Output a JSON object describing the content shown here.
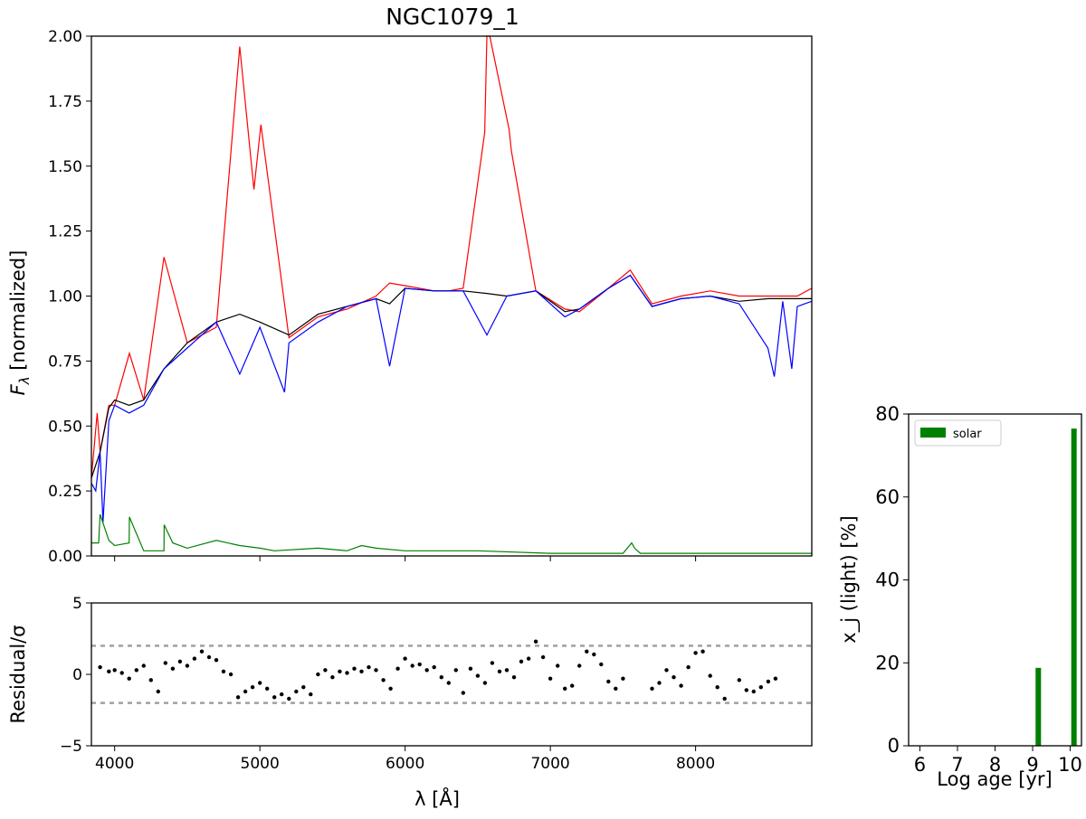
{
  "chart_data": [
    {
      "type": "line",
      "title": "NGC1079_1",
      "xlabel": "λ [Å]",
      "ylabel": "F_λ [normalized]",
      "ylabel_main": "F",
      "ylabel_sub": "λ",
      "ylabel_rest": " [normalized]",
      "xlim": [
        3840,
        8800
      ],
      "ylim": [
        0,
        2.0
      ],
      "xticks": [
        4000,
        5000,
        6000,
        7000,
        8000
      ],
      "yticks": [
        "0.00",
        "0.25",
        "0.50",
        "0.75",
        "1.00",
        "1.25",
        "1.50",
        "1.75",
        "2.00"
      ],
      "grid": false,
      "series": [
        {
          "key": "observed",
          "color": "#ff0000",
          "x": [
            3840,
            3880,
            3900,
            3960,
            4000,
            4102,
            4200,
            4340,
            4500,
            4700,
            4861,
            4959,
            5007,
            5200,
            5400,
            5600,
            5800,
            5893,
            6000,
            6200,
            6300,
            6400,
            6548,
            6563,
            6583,
            6716,
            6731,
            6900,
            7100,
            7200,
            7400,
            7550,
            7700,
            7900,
            8100,
            8300,
            8500,
            8700,
            8800
          ],
          "y": [
            0.3,
            0.55,
            0.4,
            0.58,
            0.58,
            0.78,
            0.6,
            1.15,
            0.82,
            0.88,
            1.96,
            1.41,
            1.66,
            0.84,
            0.92,
            0.95,
            1.0,
            1.05,
            1.04,
            1.02,
            1.02,
            1.03,
            1.63,
            2.0,
            2.0,
            1.64,
            1.56,
            1.02,
            0.95,
            0.94,
            1.03,
            1.1,
            0.97,
            1.0,
            1.02,
            1.0,
            1.0,
            1.0,
            1.03
          ]
        },
        {
          "key": "synthetic",
          "color": "#000000",
          "x": [
            3840,
            3900,
            3960,
            4000,
            4100,
            4200,
            4340,
            4500,
            4700,
            4861,
            5000,
            5200,
            5400,
            5600,
            5800,
            5893,
            6000,
            6200,
            6400,
            6563,
            6700,
            6900,
            7100,
            7200,
            7400,
            7550,
            7700,
            7900,
            8100,
            8300,
            8500,
            8700,
            8800
          ],
          "y": [
            0.3,
            0.4,
            0.57,
            0.6,
            0.58,
            0.6,
            0.72,
            0.82,
            0.9,
            0.93,
            0.9,
            0.85,
            0.93,
            0.96,
            0.99,
            0.97,
            1.03,
            1.02,
            1.02,
            1.01,
            1.0,
            1.02,
            0.94,
            0.95,
            1.03,
            1.08,
            0.96,
            0.99,
            1.0,
            0.98,
            0.99,
            0.99,
            0.99
          ]
        },
        {
          "key": "best-fit",
          "color": "#0000ff",
          "x": [
            3840,
            3870,
            3900,
            3920,
            3960,
            4000,
            4100,
            4200,
            4340,
            4500,
            4700,
            4861,
            5000,
            5170,
            5200,
            5400,
            5600,
            5800,
            5893,
            6000,
            6200,
            6400,
            6563,
            6700,
            6900,
            7100,
            7200,
            7400,
            7550,
            7700,
            7900,
            8100,
            8300,
            8498,
            8542,
            8600,
            8662,
            8700,
            8800
          ],
          "y": [
            0.28,
            0.25,
            0.4,
            0.13,
            0.52,
            0.58,
            0.55,
            0.58,
            0.72,
            0.8,
            0.9,
            0.7,
            0.88,
            0.63,
            0.82,
            0.9,
            0.96,
            0.99,
            0.73,
            1.03,
            1.02,
            1.02,
            0.85,
            1.0,
            1.02,
            0.92,
            0.95,
            1.03,
            1.08,
            0.96,
            0.99,
            1.0,
            0.97,
            0.8,
            0.69,
            0.98,
            0.72,
            0.96,
            0.98
          ]
        },
        {
          "key": "mask",
          "color": "#008000",
          "x": [
            3840,
            3890,
            3900,
            3960,
            4000,
            4100,
            4102,
            4200,
            4340,
            4341,
            4400,
            4500,
            4700,
            4861,
            5000,
            5100,
            5400,
            5600,
            5700,
            5800,
            6000,
            6500,
            7000,
            7500,
            7560,
            7580,
            7620,
            8000,
            8800
          ],
          "y": [
            0.05,
            0.05,
            0.16,
            0.06,
            0.04,
            0.05,
            0.15,
            0.02,
            0.02,
            0.12,
            0.05,
            0.03,
            0.06,
            0.04,
            0.03,
            0.02,
            0.03,
            0.02,
            0.04,
            0.03,
            0.02,
            0.02,
            0.01,
            0.01,
            0.05,
            0.03,
            0.01,
            0.01,
            0.01
          ]
        }
      ]
    },
    {
      "type": "scatter",
      "xlabel": "λ [Å]",
      "ylabel": "Residual/σ",
      "xlim": [
        3840,
        8800
      ],
      "ylim": [
        -5,
        5
      ],
      "xticks": [
        4000,
        5000,
        6000,
        7000,
        8000
      ],
      "xtick_labels": [
        "4000",
        "5000",
        "6000",
        "7000",
        "8000"
      ],
      "yticks": [
        -5,
        0,
        5
      ],
      "ytick_labels": [
        "−5",
        "0",
        "5"
      ],
      "hlines": [
        2,
        -2
      ],
      "hline_color": "#a0a0a0",
      "point_color": "#000000",
      "points_x": [
        3900,
        3960,
        4000,
        4050,
        4100,
        4150,
        4200,
        4250,
        4300,
        4350,
        4400,
        4450,
        4500,
        4550,
        4600,
        4650,
        4700,
        4750,
        4800,
        4850,
        4900,
        4950,
        5000,
        5050,
        5100,
        5150,
        5200,
        5250,
        5300,
        5350,
        5400,
        5450,
        5500,
        5550,
        5600,
        5650,
        5700,
        5750,
        5800,
        5850,
        5900,
        5950,
        6000,
        6050,
        6100,
        6150,
        6200,
        6250,
        6300,
        6350,
        6400,
        6450,
        6500,
        6550,
        6600,
        6650,
        6700,
        6750,
        6800,
        6850,
        6900,
        6950,
        7000,
        7050,
        7100,
        7150,
        7200,
        7250,
        7300,
        7350,
        7400,
        7450,
        7500,
        7700,
        7750,
        7800,
        7850,
        7900,
        7950,
        8000,
        8050,
        8100,
        8150,
        8200,
        8300,
        8350,
        8400,
        8450,
        8500,
        8550
      ],
      "points_y": [
        0.5,
        0.2,
        0.3,
        0.1,
        -0.3,
        0.3,
        0.6,
        -0.4,
        -1.2,
        0.8,
        0.4,
        0.9,
        0.6,
        1.1,
        1.6,
        1.2,
        1.0,
        0.2,
        0.0,
        -1.6,
        -1.2,
        -0.9,
        -0.6,
        -1.0,
        -1.6,
        -1.4,
        -1.7,
        -1.2,
        -0.9,
        -1.4,
        0.0,
        0.3,
        -0.2,
        0.2,
        0.1,
        0.4,
        0.2,
        0.5,
        0.3,
        -0.4,
        -1.0,
        0.4,
        1.1,
        0.6,
        0.7,
        0.3,
        0.5,
        -0.2,
        -0.6,
        0.3,
        -1.3,
        0.4,
        -0.1,
        -0.6,
        0.8,
        0.2,
        0.3,
        -0.2,
        0.9,
        1.1,
        2.3,
        1.2,
        -0.3,
        0.6,
        -1.0,
        -0.8,
        0.6,
        1.6,
        1.4,
        0.7,
        -0.5,
        -1.0,
        -0.3,
        -1.0,
        -0.6,
        0.3,
        -0.2,
        -0.8,
        0.5,
        1.5,
        1.6,
        -0.1,
        -0.9,
        -1.7,
        -0.4,
        -1.1,
        -1.2,
        -0.9,
        -0.5,
        -0.3
      ]
    },
    {
      "type": "bar",
      "xlabel": "Log age [yr]",
      "ylabel": "x_j (light) [%]",
      "xlim": [
        5.7,
        10.3
      ],
      "ylim": [
        0,
        80
      ],
      "xticks": [
        6,
        7,
        8,
        9,
        10
      ],
      "yticks": [
        0,
        20,
        40,
        60,
        80
      ],
      "legend": "top-left",
      "series": [
        {
          "name": "solar",
          "color": "#008000",
          "x": [
            9.15,
            10.1
          ],
          "values": [
            18.8,
            76.5
          ]
        }
      ]
    }
  ]
}
